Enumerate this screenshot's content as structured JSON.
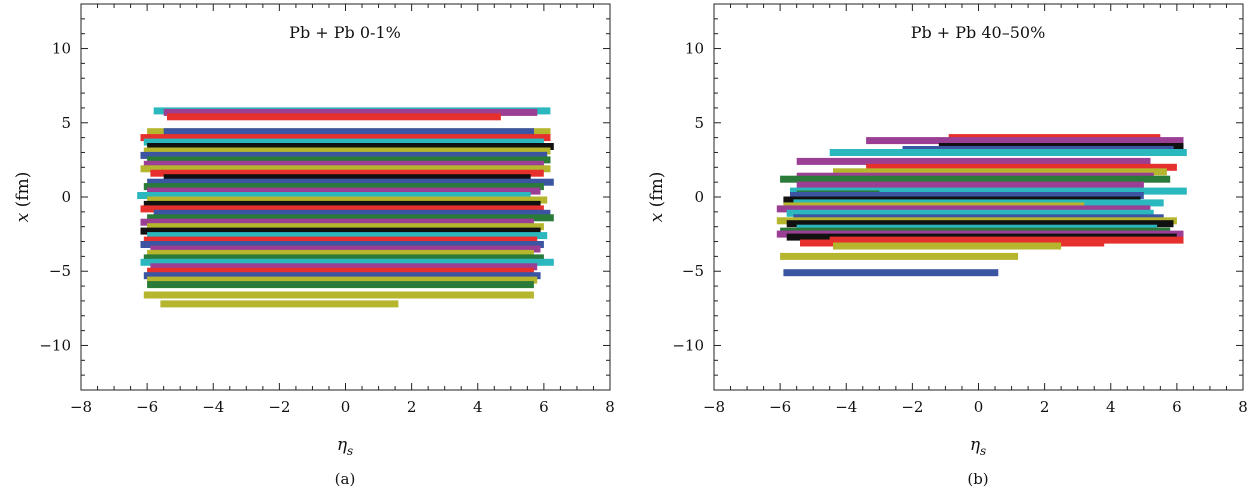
{
  "figure": {
    "panels": [
      {
        "caption": "(a)"
      },
      {
        "caption": "(b)"
      }
    ]
  },
  "colors": {
    "palette": [
      "#e5302d",
      "#3b55a3",
      "#b6b52e",
      "#9b3f95",
      "#2a7a3a",
      "#2ab7be",
      "#111111"
    ]
  },
  "chart_data": [
    {
      "type": "bar",
      "orientation": "horizontal-range",
      "title": "Pb + Pb 0-1%",
      "xlabel": "η_s",
      "xlabel_main": "η",
      "xlabel_sub": "s",
      "ylabel": "x (fm)",
      "ylabel_var": "x",
      "ylabel_unit": " (fm)",
      "xlim": [
        -8,
        8
      ],
      "ylim": [
        -13,
        13
      ],
      "xticks": [
        -8,
        -6,
        -4,
        -2,
        0,
        2,
        4,
        6,
        8
      ],
      "yticks": [
        -10,
        -5,
        0,
        5,
        10
      ],
      "tick_labels_x": [
        "−8",
        "−6",
        "−4",
        "−2",
        "0",
        "2",
        "4",
        "6",
        "8"
      ],
      "tick_labels_y": [
        "−10",
        "−5",
        "0",
        "5",
        "10"
      ],
      "grid": false,
      "segments": [
        {
          "y": 5.8,
          "x0": -5.8,
          "x1": 6.2,
          "color": "#2ab7be"
        },
        {
          "y": 5.7,
          "x0": -5.5,
          "x1": 5.8,
          "color": "#9b3f95"
        },
        {
          "y": 5.4,
          "x0": -5.4,
          "x1": 4.7,
          "color": "#e5302d"
        },
        {
          "y": 4.4,
          "x0": -6.0,
          "x1": 6.2,
          "color": "#b6b52e"
        },
        {
          "y": 4.4,
          "x0": -5.5,
          "x1": 5.7,
          "color": "#3b55a3"
        },
        {
          "y": 4.0,
          "x0": -6.2,
          "x1": 6.2,
          "color": "#e5302d"
        },
        {
          "y": 3.7,
          "x0": -6.1,
          "x1": 6.0,
          "color": "#2ab7be"
        },
        {
          "y": 3.4,
          "x0": -6.0,
          "x1": 6.3,
          "color": "#111111"
        },
        {
          "y": 3.1,
          "x0": -6.1,
          "x1": 6.2,
          "color": "#b6b52e"
        },
        {
          "y": 2.8,
          "x0": -6.2,
          "x1": 6.1,
          "color": "#3b55a3"
        },
        {
          "y": 2.5,
          "x0": -6.0,
          "x1": 6.2,
          "color": "#2a7a3a"
        },
        {
          "y": 2.2,
          "x0": -6.1,
          "x1": 6.0,
          "color": "#9b3f95"
        },
        {
          "y": 1.9,
          "x0": -6.2,
          "x1": 6.2,
          "color": "#b6b52e"
        },
        {
          "y": 1.6,
          "x0": -5.9,
          "x1": 6.0,
          "color": "#e5302d"
        },
        {
          "y": 1.3,
          "x0": -5.5,
          "x1": 5.6,
          "color": "#111111"
        },
        {
          "y": 1.0,
          "x0": -6.0,
          "x1": 6.3,
          "color": "#3b55a3"
        },
        {
          "y": 0.7,
          "x0": -6.1,
          "x1": 6.0,
          "color": "#2a7a3a"
        },
        {
          "y": 0.4,
          "x0": -6.0,
          "x1": 5.9,
          "color": "#9b3f95"
        },
        {
          "y": 0.1,
          "x0": -6.3,
          "x1": 5.6,
          "color": "#2ab7be"
        },
        {
          "y": -0.2,
          "x0": -6.0,
          "x1": 6.1,
          "color": "#b6b52e"
        },
        {
          "y": -0.5,
          "x0": -6.1,
          "x1": 5.9,
          "color": "#111111"
        },
        {
          "y": -0.8,
          "x0": -6.2,
          "x1": 6.0,
          "color": "#e5302d"
        },
        {
          "y": -1.1,
          "x0": -5.8,
          "x1": 6.2,
          "color": "#3b55a3"
        },
        {
          "y": -1.4,
          "x0": -6.0,
          "x1": 6.3,
          "color": "#2a7a3a"
        },
        {
          "y": -1.7,
          "x0": -6.2,
          "x1": 5.7,
          "color": "#9b3f95"
        },
        {
          "y": -2.0,
          "x0": -6.0,
          "x1": 6.0,
          "color": "#b6b52e"
        },
        {
          "y": -2.3,
          "x0": -6.2,
          "x1": 5.9,
          "color": "#111111"
        },
        {
          "y": -2.6,
          "x0": -6.0,
          "x1": 6.1,
          "color": "#2ab7be"
        },
        {
          "y": -2.9,
          "x0": -6.1,
          "x1": 5.8,
          "color": "#e5302d"
        },
        {
          "y": -3.2,
          "x0": -6.2,
          "x1": 6.0,
          "color": "#3b55a3"
        },
        {
          "y": -3.5,
          "x0": -5.9,
          "x1": 5.9,
          "color": "#9b3f95"
        },
        {
          "y": -3.8,
          "x0": -6.0,
          "x1": 5.7,
          "color": "#b6b52e"
        },
        {
          "y": -4.1,
          "x0": -6.1,
          "x1": 6.0,
          "color": "#2a7a3a"
        },
        {
          "y": -4.4,
          "x0": -6.2,
          "x1": 6.3,
          "color": "#2ab7be"
        },
        {
          "y": -4.7,
          "x0": -5.9,
          "x1": 5.8,
          "color": "#9b3f95"
        },
        {
          "y": -5.0,
          "x0": -6.0,
          "x1": 5.7,
          "color": "#e5302d"
        },
        {
          "y": -5.3,
          "x0": -6.1,
          "x1": 5.9,
          "color": "#3b55a3"
        },
        {
          "y": -5.6,
          "x0": -6.0,
          "x1": 5.8,
          "color": "#b6b52e"
        },
        {
          "y": -5.9,
          "x0": -6.0,
          "x1": 5.7,
          "color": "#2a7a3a"
        },
        {
          "y": -6.6,
          "x0": -6.1,
          "x1": 5.7,
          "color": "#b6b52e"
        },
        {
          "y": -7.2,
          "x0": -5.6,
          "x1": 1.6,
          "color": "#b6b52e"
        }
      ]
    },
    {
      "type": "bar",
      "orientation": "horizontal-range",
      "title": "Pb + Pb 40–50%",
      "xlabel": "η_s",
      "xlabel_main": "η",
      "xlabel_sub": "s",
      "ylabel": "x (fm)",
      "ylabel_var": "x",
      "ylabel_unit": " (fm)",
      "xlim": [
        -8,
        8
      ],
      "ylim": [
        -13,
        13
      ],
      "xticks": [
        -8,
        -6,
        -4,
        -2,
        0,
        2,
        4,
        6,
        8
      ],
      "yticks": [
        -10,
        -5,
        0,
        5,
        10
      ],
      "tick_labels_x": [
        "−8",
        "−6",
        "−4",
        "−2",
        "0",
        "2",
        "4",
        "6",
        "8"
      ],
      "tick_labels_y": [
        "−10",
        "−5",
        "0",
        "5",
        "10"
      ],
      "grid": false,
      "segments": [
        {
          "y": 4.0,
          "x0": -0.9,
          "x1": 5.5,
          "color": "#e5302d"
        },
        {
          "y": 3.8,
          "x0": -3.4,
          "x1": 6.2,
          "color": "#9b3f95"
        },
        {
          "y": 3.4,
          "x0": -1.2,
          "x1": 6.2,
          "color": "#111111"
        },
        {
          "y": 3.2,
          "x0": -2.3,
          "x1": 5.9,
          "color": "#3b55a3"
        },
        {
          "y": 3.0,
          "x0": -4.5,
          "x1": 6.3,
          "color": "#2ab7be"
        },
        {
          "y": 2.4,
          "x0": -5.5,
          "x1": 5.2,
          "color": "#9b3f95"
        },
        {
          "y": 2.0,
          "x0": -3.4,
          "x1": 6.0,
          "color": "#e5302d"
        },
        {
          "y": 1.7,
          "x0": -4.4,
          "x1": 5.7,
          "color": "#b6b52e"
        },
        {
          "y": 1.4,
          "x0": -5.5,
          "x1": 5.3,
          "color": "#9b3f95"
        },
        {
          "y": 1.2,
          "x0": -6.0,
          "x1": 5.8,
          "color": "#2a7a3a"
        },
        {
          "y": 0.8,
          "x0": -5.5,
          "x1": 5.0,
          "color": "#9b3f95"
        },
        {
          "y": 0.4,
          "x0": -5.7,
          "x1": 6.3,
          "color": "#2ab7be"
        },
        {
          "y": 0.2,
          "x0": -5.5,
          "x1": -3.0,
          "color": "#2a7a3a"
        },
        {
          "y": 0.1,
          "x0": -5.7,
          "x1": 5.0,
          "color": "#3b55a3"
        },
        {
          "y": -0.2,
          "x0": -5.9,
          "x1": 4.9,
          "color": "#111111"
        },
        {
          "y": -0.4,
          "x0": -5.6,
          "x1": 5.6,
          "color": "#2ab7be"
        },
        {
          "y": -0.6,
          "x0": -5.9,
          "x1": 3.2,
          "color": "#b6b52e"
        },
        {
          "y": -0.8,
          "x0": -6.1,
          "x1": 5.2,
          "color": "#9b3f95"
        },
        {
          "y": -1.1,
          "x0": -5.8,
          "x1": 5.3,
          "color": "#2ab7be"
        },
        {
          "y": -1.4,
          "x0": -5.6,
          "x1": 5.6,
          "color": "#3b55a3"
        },
        {
          "y": -1.6,
          "x0": -6.1,
          "x1": 6.0,
          "color": "#b6b52e"
        },
        {
          "y": -1.8,
          "x0": -5.8,
          "x1": 5.9,
          "color": "#111111"
        },
        {
          "y": -2.1,
          "x0": -5.5,
          "x1": 5.4,
          "color": "#2ab7be"
        },
        {
          "y": -2.3,
          "x0": -6.0,
          "x1": 5.8,
          "color": "#2a7a3a"
        },
        {
          "y": -2.5,
          "x0": -6.1,
          "x1": 6.2,
          "color": "#9b3f95"
        },
        {
          "y": -2.7,
          "x0": -5.8,
          "x1": 6.0,
          "color": "#111111"
        },
        {
          "y": -2.9,
          "x0": -4.5,
          "x1": 6.2,
          "color": "#e5302d"
        },
        {
          "y": -3.1,
          "x0": -5.4,
          "x1": 3.8,
          "color": "#e5302d"
        },
        {
          "y": -3.3,
          "x0": -4.4,
          "x1": 2.5,
          "color": "#b6b52e"
        },
        {
          "y": -4.0,
          "x0": -6.0,
          "x1": 1.2,
          "color": "#b6b52e"
        },
        {
          "y": -5.1,
          "x0": -5.9,
          "x1": 0.6,
          "color": "#3b55a3"
        }
      ]
    }
  ]
}
